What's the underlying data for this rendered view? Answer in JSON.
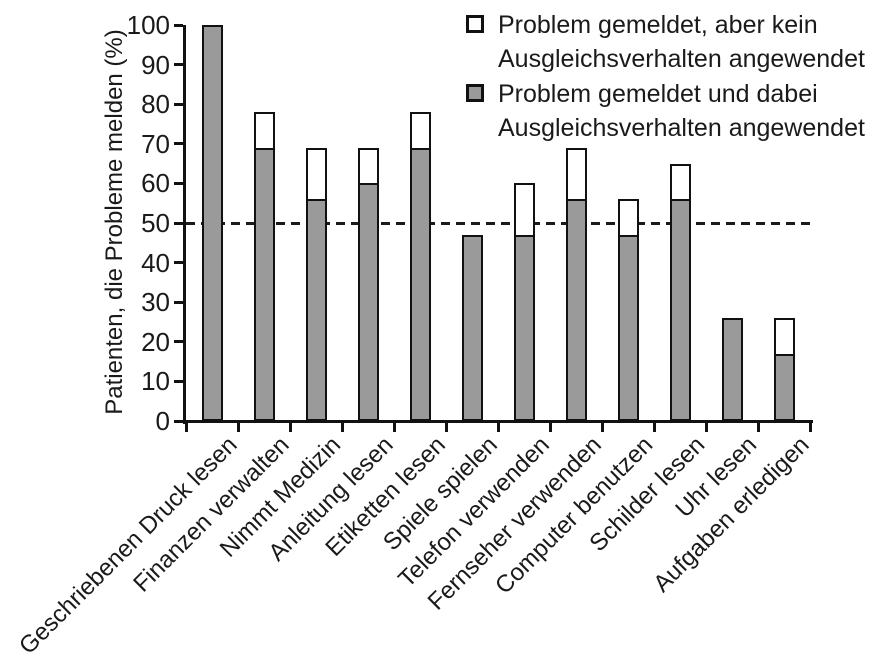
{
  "chart_data": {
    "type": "bar",
    "stacked": true,
    "title": "",
    "xlabel": "",
    "ylabel": "Patienten, die Probleme melden (%)",
    "ylim": [
      0,
      100
    ],
    "yticks": [
      0,
      10,
      20,
      30,
      40,
      50,
      60,
      70,
      80,
      90,
      100
    ],
    "grid": false,
    "reference_line": {
      "y": 50,
      "style": "dashed"
    },
    "legend_position": "top-right",
    "categories": [
      "Geschriebenen Druck lesen",
      "Finanzen verwalten",
      "Nimmt Medizin",
      "Anleitung lesen",
      "Etiketten lesen",
      "Spiele spielen",
      "Telefon verwenden",
      "Fernseher verwenden",
      "Computer benutzen",
      "Schilder lesen",
      "Uhr lesen",
      "Aufgaben erledigen"
    ],
    "series": [
      {
        "name": "Problem gemeldet und dabei Ausgleichsverhalten angewendet",
        "color": "#9a9a9a",
        "values": [
          100,
          69,
          56,
          60,
          69,
          47,
          47,
          56,
          47,
          56,
          26,
          17
        ]
      },
      {
        "name": "Problem gemeldet, aber kein Ausgleichsverhalten angewendet",
        "color": "#ffffff",
        "values": [
          0,
          9,
          13,
          9,
          9,
          0,
          13,
          13,
          9,
          9,
          0,
          9
        ]
      }
    ],
    "totals": [
      100,
      78,
      69,
      69,
      78,
      47,
      60,
      69,
      56,
      65,
      26,
      26
    ]
  },
  "legend": {
    "entries": [
      {
        "swatch": "white-square",
        "lines": [
          "Problem gemeldet, aber kein",
          "Ausgleichsverhalten angewendet"
        ]
      },
      {
        "swatch": "gray-square",
        "lines": [
          "Problem gemeldet und dabei",
          "Ausgleichsverhalten angewendet"
        ]
      }
    ]
  },
  "colors": {
    "bar_fill": "#9a9a9a",
    "bar_outline": "#111111",
    "axis": "#111111",
    "text": "#1a1a1a",
    "reference_line": "#1a1a1a",
    "background": "#ffffff"
  }
}
